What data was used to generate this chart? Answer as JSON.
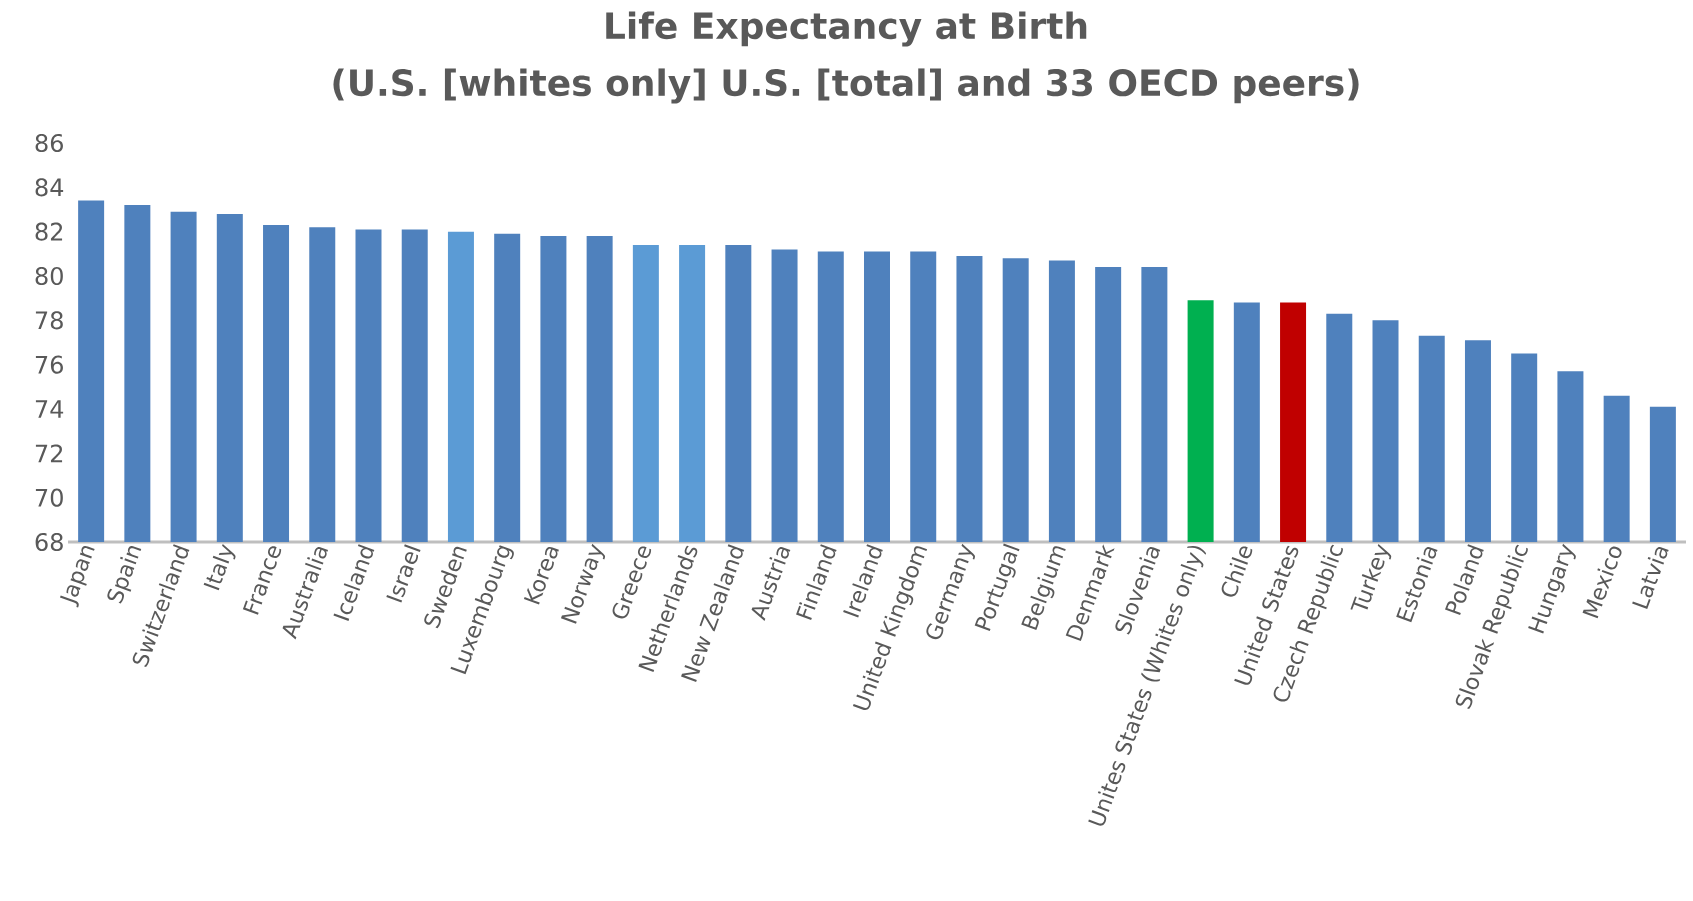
{
  "chart_data": {
    "type": "bar",
    "title": "Life Expectancy at Birth",
    "subtitle": "(U.S. [whites only] U.S. [total] and 33 OECD peers)",
    "categories": [
      "Japan",
      "Spain",
      "Switzerland",
      "Italy",
      "France",
      "Australia",
      "Iceland",
      "Israel",
      "Sweden",
      "Luxembourg",
      "Korea",
      "Norway",
      "Greece",
      "Netherlands",
      "New Zealand",
      "Austria",
      "Finland",
      "Ireland",
      "United Kingdom",
      "Germany",
      "Portugal",
      "Belgium",
      "Denmark",
      "Slovenia",
      "Unites States (Whites only)",
      "Chile",
      "United States",
      "Czech Republic",
      "Turkey",
      "Estonia",
      "Poland",
      "Slovak Republic",
      "Hungary",
      "Mexico",
      "Latvia"
    ],
    "values": [
      83.4,
      83.2,
      82.9,
      82.8,
      82.3,
      82.2,
      82.1,
      82.1,
      82.0,
      81.9,
      81.8,
      81.8,
      81.4,
      81.4,
      81.4,
      81.2,
      81.1,
      81.1,
      81.1,
      80.9,
      80.8,
      80.7,
      80.4,
      80.4,
      78.9,
      78.8,
      78.8,
      78.3,
      78.0,
      77.3,
      77.1,
      76.5,
      75.7,
      74.6,
      74.1
    ],
    "colors": [
      "#4f81bd",
      "#4f81bd",
      "#4f81bd",
      "#4f81bd",
      "#4f81bd",
      "#4f81bd",
      "#4f81bd",
      "#4f81bd",
      "#5b9bd5",
      "#4f81bd",
      "#4f81bd",
      "#4f81bd",
      "#5b9bd5",
      "#5b9bd5",
      "#4f81bd",
      "#4f81bd",
      "#4f81bd",
      "#4f81bd",
      "#4f81bd",
      "#4f81bd",
      "#4f81bd",
      "#4f81bd",
      "#4f81bd",
      "#4f81bd",
      "#00b050",
      "#4f81bd",
      "#c00000",
      "#4f81bd",
      "#4f81bd",
      "#4f81bd",
      "#4f81bd",
      "#4f81bd",
      "#4f81bd",
      "#4f81bd",
      "#4f81bd"
    ],
    "ylim": [
      68,
      86
    ],
    "yticks": [
      68,
      70,
      72,
      74,
      76,
      78,
      80,
      82,
      84,
      86
    ],
    "grid": false
  }
}
